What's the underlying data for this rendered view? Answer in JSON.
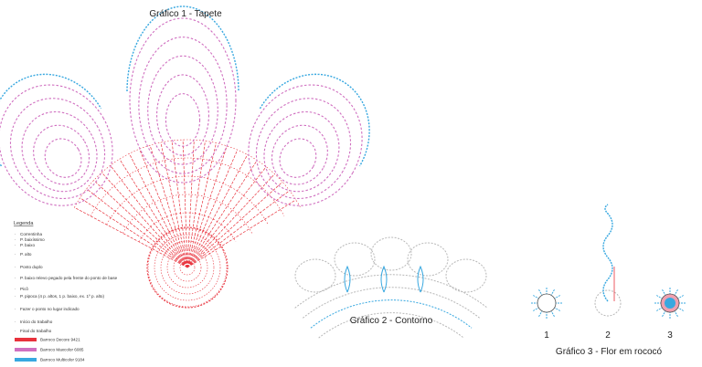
{
  "chart1": {
    "title": "Gráfico 1 - Tapete"
  },
  "legend": {
    "title": "Legenda",
    "items": [
      "Correntinha",
      "P. baixíssimo",
      "P. baixo",
      "P. alto",
      "Ponto duplo",
      "P. baixo relevo pegado pela frente do ponto de base",
      "Picô",
      "P. pipoca (4 p. altos, 1 p. baixo, ex. 1º p. alto)",
      "Fazer o ponto no lugar indicado",
      "Início do trabalho",
      "Final do trabalho"
    ],
    "colors": [
      "Barroco Decore 9421",
      "Barroco Maxcolor 6085",
      "Barroco Multicolor 9184"
    ]
  },
  "chart2": {
    "title": "Gráfico 2 - Contorno"
  },
  "chart3": {
    "title": "Gráfico 3 - Flor em rococó",
    "steps": [
      "1",
      "2",
      "3"
    ]
  }
}
